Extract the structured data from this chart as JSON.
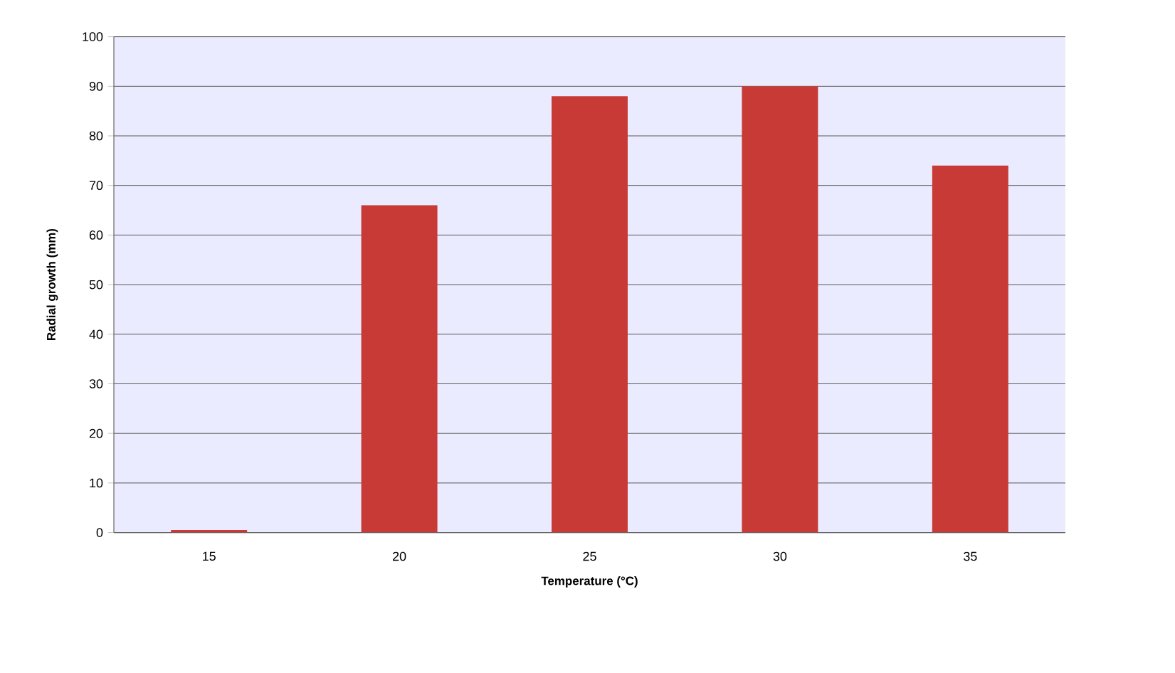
{
  "chart_data": {
    "type": "bar",
    "xlabel": "Temperature (°C)",
    "ylabel": "Radial growth (mm)",
    "categories": [
      "15",
      "20",
      "25",
      "30",
      "35"
    ],
    "values": [
      0.5,
      66,
      88,
      90,
      74
    ],
    "color": "#c83a36",
    "ylim": [
      0,
      100
    ],
    "yticks": [
      0,
      10,
      20,
      30,
      40,
      50,
      60,
      70,
      80,
      90,
      100
    ],
    "grid": "y"
  }
}
